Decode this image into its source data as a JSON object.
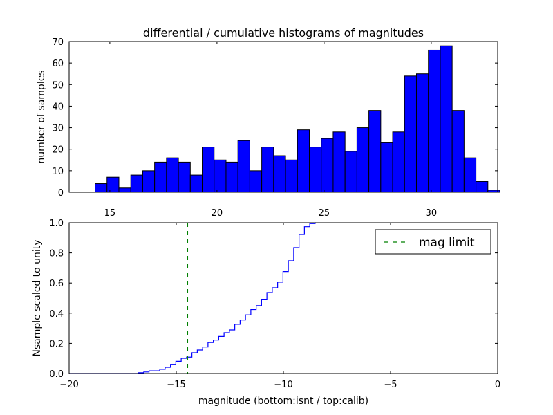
{
  "chart_data": [
    {
      "type": "bar",
      "title": "differential / cumulative histograms of magnitudes",
      "xlabel": "",
      "ylabel": "number of samples",
      "xlim": [
        13.1,
        33.1
      ],
      "ylim": [
        0,
        70
      ],
      "xticks": [
        15,
        20,
        25,
        30
      ],
      "yticks": [
        0,
        10,
        20,
        30,
        40,
        50,
        60,
        70
      ],
      "bin_start": 13.2,
      "bin_width": 0.5555,
      "values": [
        0,
        0,
        4,
        7,
        2,
        8,
        10,
        14,
        16,
        14,
        8,
        21,
        15,
        14,
        24,
        10,
        21,
        17,
        15,
        29,
        21,
        25,
        28,
        19,
        30,
        38,
        23,
        28,
        54,
        55,
        66,
        68,
        38,
        16,
        5,
        1
      ],
      "color": "#0000ff"
    },
    {
      "type": "line",
      "title": "",
      "xlabel": "magnitude (bottom:isnt / top:calib)",
      "ylabel": "Nsample scaled to unity",
      "xlim": [
        -20,
        0
      ],
      "ylim": [
        0,
        1
      ],
      "xticks": [
        -20,
        -15,
        -10,
        -5,
        0
      ],
      "yticks": [
        "0.0",
        "0.2",
        "0.4",
        "0.6",
        "0.8",
        "1.0"
      ],
      "step_start": -16.77,
      "step_width": 0.25,
      "step_end": -8.49,
      "values": [
        0.005,
        0.01,
        0.018,
        0.018,
        0.028,
        0.041,
        0.061,
        0.081,
        0.101,
        0.109,
        0.138,
        0.156,
        0.176,
        0.206,
        0.222,
        0.246,
        0.271,
        0.289,
        0.326,
        0.355,
        0.389,
        0.424,
        0.45,
        0.489,
        0.537,
        0.569,
        0.606,
        0.676,
        0.748,
        0.835,
        0.922,
        0.974,
        0.994,
        1.0
      ],
      "color": "#0000ff",
      "mag_limit": -14.47,
      "mag_limit_color": "#007f00",
      "legend": {
        "label": "mag limit",
        "placement": "top-right"
      }
    }
  ]
}
